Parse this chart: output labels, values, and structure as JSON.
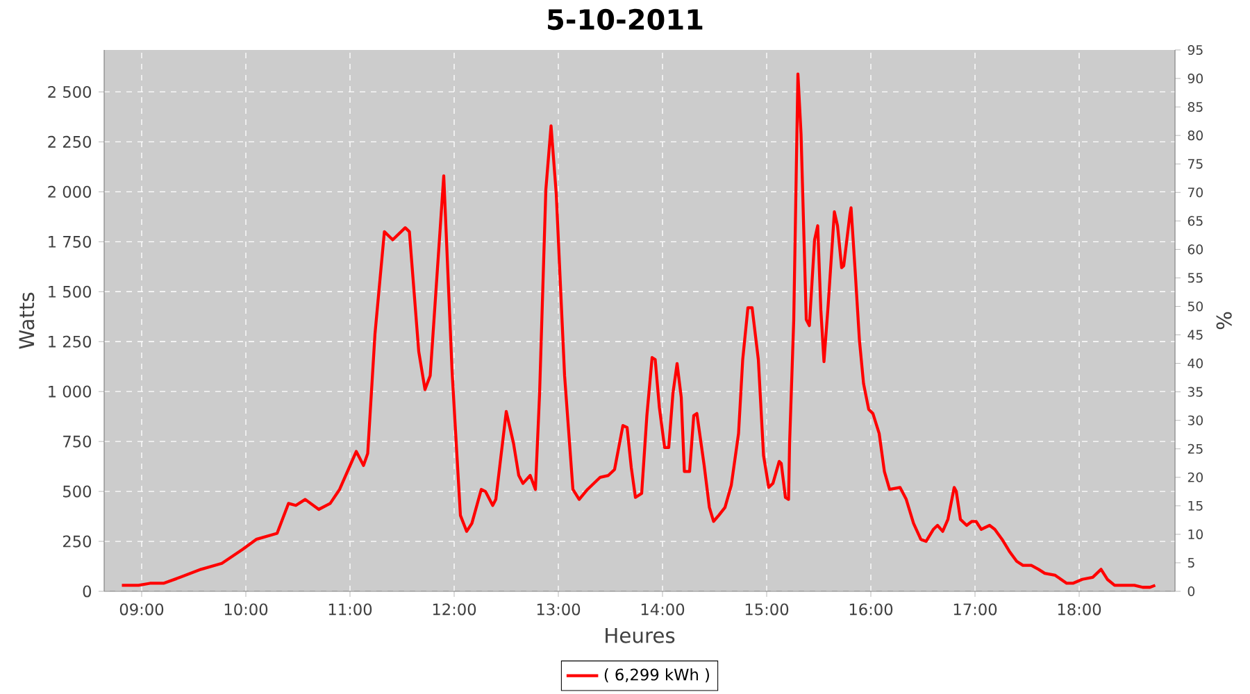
{
  "chart_data": {
    "type": "line",
    "title": "5-10-2011",
    "xlabel": "Heures",
    "ylabel": "Watts",
    "y2label": "%",
    "xlim": [
      8.64,
      18.92
    ],
    "ylim": [
      0,
      2710
    ],
    "y2lim": [
      0,
      95
    ],
    "xticks": [
      {
        "value": 9,
        "label": "09:00"
      },
      {
        "value": 10,
        "label": "10:00"
      },
      {
        "value": 11,
        "label": "11:00"
      },
      {
        "value": 12,
        "label": "12:00"
      },
      {
        "value": 13,
        "label": "13:00"
      },
      {
        "value": 14,
        "label": "14:00"
      },
      {
        "value": 15,
        "label": "15:00"
      },
      {
        "value": 16,
        "label": "16:00"
      },
      {
        "value": 17,
        "label": "17:00"
      },
      {
        "value": 18,
        "label": "18:00"
      }
    ],
    "yticks": [
      0,
      250,
      500,
      750,
      {
        "value": 1000,
        "label": "1 000"
      },
      {
        "value": 1250,
        "label": "1 250"
      },
      {
        "value": 1500,
        "label": "1 500"
      },
      {
        "value": 1750,
        "label": "1 750"
      },
      {
        "value": 2000,
        "label": "2 000"
      },
      {
        "value": 2250,
        "label": "2 250"
      },
      {
        "value": 2500,
        "label": "2 500"
      }
    ],
    "y2ticks": [
      0,
      5,
      10,
      15,
      20,
      25,
      30,
      35,
      40,
      45,
      50,
      55,
      60,
      65,
      70,
      75,
      80,
      85,
      90,
      95
    ],
    "grid": true,
    "legend": "bottom",
    "line_style": "solid",
    "series": [
      {
        "name": "( 6,299 kWh )",
        "color": "#ff0000",
        "x": [
          8.81,
          8.97,
          9.08,
          9.21,
          9.37,
          9.57,
          9.77,
          9.97,
          10.1,
          10.3,
          10.41,
          10.48,
          10.57,
          10.7,
          10.81,
          10.9,
          11.06,
          11.13,
          11.17,
          11.24,
          11.33,
          11.41,
          11.53,
          11.57,
          11.66,
          11.72,
          11.77,
          11.9,
          11.94,
          11.98,
          12.06,
          12.12,
          12.17,
          12.26,
          12.3,
          12.37,
          12.4,
          12.5,
          12.57,
          12.62,
          12.66,
          12.73,
          12.78,
          12.82,
          12.88,
          12.93,
          12.98,
          13.06,
          13.14,
          13.2,
          13.28,
          13.4,
          13.48,
          13.54,
          13.62,
          13.66,
          13.7,
          13.74,
          13.8,
          13.85,
          13.9,
          13.93,
          13.97,
          14.02,
          14.06,
          14.1,
          14.14,
          14.18,
          14.21,
          14.26,
          14.3,
          14.33,
          14.4,
          14.45,
          14.49,
          14.54,
          14.6,
          14.66,
          14.73,
          14.77,
          14.82,
          14.86,
          14.92,
          14.97,
          15.02,
          15.06,
          15.12,
          15.14,
          15.18,
          15.21,
          15.22,
          15.26,
          15.3,
          15.33,
          15.38,
          15.41,
          15.46,
          15.49,
          15.52,
          15.55,
          15.59,
          15.65,
          15.68,
          15.72,
          15.74,
          15.8,
          15.81,
          15.85,
          15.89,
          15.93,
          15.98,
          16.02,
          16.08,
          16.13,
          16.18,
          16.28,
          16.34,
          16.41,
          16.48,
          16.53,
          16.6,
          16.64,
          16.69,
          16.74,
          16.8,
          16.82,
          16.86,
          16.92,
          16.97,
          17.01,
          17.06,
          17.14,
          17.19,
          17.26,
          17.33,
          17.4,
          17.46,
          17.54,
          17.61,
          17.67,
          17.77,
          17.88,
          17.94,
          18.03,
          18.13,
          18.21,
          18.27,
          18.34,
          18.53,
          18.61,
          18.68,
          18.73
        ],
        "values": [
          30,
          30,
          40,
          40,
          70,
          110,
          140,
          210,
          260,
          290,
          440,
          430,
          460,
          410,
          440,
          510,
          700,
          630,
          690,
          1290,
          1800,
          1760,
          1820,
          1800,
          1200,
          1010,
          1080,
          2080,
          1590,
          1100,
          380,
          300,
          340,
          510,
          500,
          430,
          460,
          900,
          740,
          580,
          540,
          580,
          510,
          990,
          2010,
          2330,
          1990,
          1080,
          510,
          460,
          510,
          570,
          580,
          610,
          830,
          820,
          620,
          470,
          490,
          880,
          1170,
          1160,
          920,
          720,
          720,
          990,
          1140,
          970,
          600,
          600,
          880,
          890,
          630,
          420,
          350,
          380,
          420,
          530,
          790,
          1160,
          1420,
          1420,
          1160,
          680,
          520,
          540,
          650,
          640,
          470,
          460,
          740,
          1360,
          2590,
          2290,
          1360,
          1330,
          1760,
          1830,
          1410,
          1150,
          1430,
          1900,
          1830,
          1620,
          1630,
          1890,
          1920,
          1600,
          1260,
          1040,
          910,
          890,
          790,
          600,
          510,
          520,
          460,
          340,
          260,
          250,
          310,
          330,
          300,
          360,
          520,
          500,
          360,
          330,
          350,
          350,
          310,
          330,
          310,
          260,
          200,
          150,
          130,
          130,
          110,
          90,
          80,
          40,
          40,
          60,
          70,
          110,
          60,
          30,
          30,
          20,
          20,
          30
        ]
      }
    ]
  }
}
